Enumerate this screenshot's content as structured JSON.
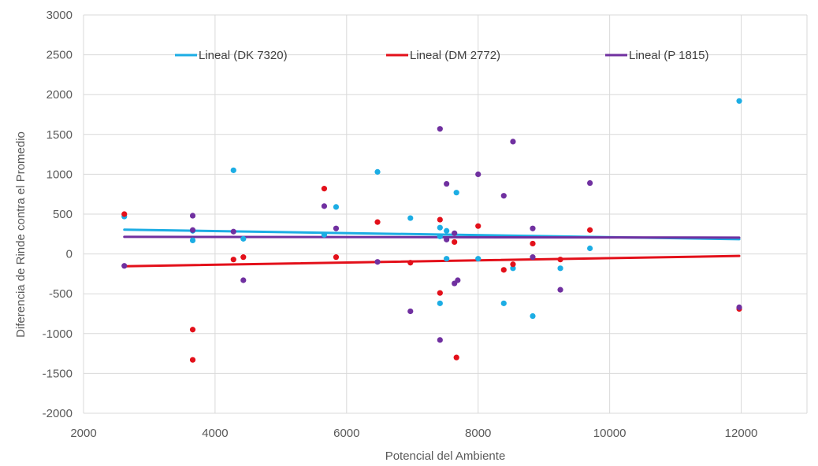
{
  "chart_data": {
    "type": "scatter",
    "xlabel": "Potencial del Ambiente",
    "ylabel": "Diferencia de Rinde contra el Promedio",
    "xlim": [
      2000,
      13000
    ],
    "ylim": [
      -2000,
      3000
    ],
    "xticks": [
      2000,
      4000,
      6000,
      8000,
      10000,
      12000
    ],
    "yticks": [
      -2000,
      -1500,
      -1000,
      -500,
      0,
      500,
      1000,
      1500,
      2000,
      2500,
      3000
    ],
    "grid": true,
    "legend_position": "top",
    "series": [
      {
        "color": "#1CADE4",
        "points": [
          [
            2620,
            470
          ],
          [
            3660,
            290
          ],
          [
            3660,
            170
          ],
          [
            4280,
            1050
          ],
          [
            4430,
            190
          ],
          [
            5660,
            240
          ],
          [
            5840,
            590
          ],
          [
            6470,
            1030
          ],
          [
            6970,
            450
          ],
          [
            7420,
            330
          ],
          [
            7420,
            220
          ],
          [
            7420,
            -620
          ],
          [
            7520,
            290
          ],
          [
            7520,
            -60
          ],
          [
            7670,
            770
          ],
          [
            8000,
            -60
          ],
          [
            8390,
            -620
          ],
          [
            8530,
            -180
          ],
          [
            8830,
            -780
          ],
          [
            9250,
            -180
          ],
          [
            9700,
            70
          ],
          [
            11970,
            1920
          ]
        ],
        "trend": {
          "label": "Lineal (DK 7320)",
          "x": [
            2620,
            11970
          ],
          "y": [
            305,
            185
          ]
        }
      },
      {
        "color": "#E3101A",
        "points": [
          [
            2620,
            500
          ],
          [
            3660,
            -950
          ],
          [
            3660,
            -1330
          ],
          [
            4280,
            -70
          ],
          [
            4430,
            -40
          ],
          [
            5660,
            820
          ],
          [
            5840,
            -40
          ],
          [
            6470,
            400
          ],
          [
            6970,
            -110
          ],
          [
            7420,
            430
          ],
          [
            7420,
            -490
          ],
          [
            7640,
            150
          ],
          [
            7670,
            -1300
          ],
          [
            8000,
            350
          ],
          [
            8390,
            -200
          ],
          [
            8530,
            -130
          ],
          [
            8830,
            130
          ],
          [
            9250,
            -70
          ],
          [
            9700,
            300
          ],
          [
            11970,
            -690
          ]
        ],
        "trend": {
          "label": "Lineal (DM 2772)",
          "x": [
            2620,
            11970
          ],
          "y": [
            -155,
            -25
          ]
        }
      },
      {
        "color": "#7030A0",
        "points": [
          [
            2620,
            -150
          ],
          [
            3660,
            480
          ],
          [
            3660,
            300
          ],
          [
            4280,
            280
          ],
          [
            4430,
            -330
          ],
          [
            5660,
            600
          ],
          [
            5840,
            320
          ],
          [
            6470,
            -100
          ],
          [
            6970,
            -720
          ],
          [
            7420,
            1570
          ],
          [
            7420,
            -1080
          ],
          [
            7520,
            880
          ],
          [
            7520,
            180
          ],
          [
            7640,
            260
          ],
          [
            7640,
            -370
          ],
          [
            7690,
            -330
          ],
          [
            8000,
            1000
          ],
          [
            8390,
            730
          ],
          [
            8530,
            1410
          ],
          [
            8830,
            320
          ],
          [
            8830,
            -40
          ],
          [
            9250,
            -450
          ],
          [
            9700,
            890
          ],
          [
            11970,
            -670
          ]
        ],
        "trend": {
          "label": "Lineal (P 1815)",
          "x": [
            2620,
            11970
          ],
          "y": [
            215,
            205
          ]
        }
      }
    ]
  }
}
